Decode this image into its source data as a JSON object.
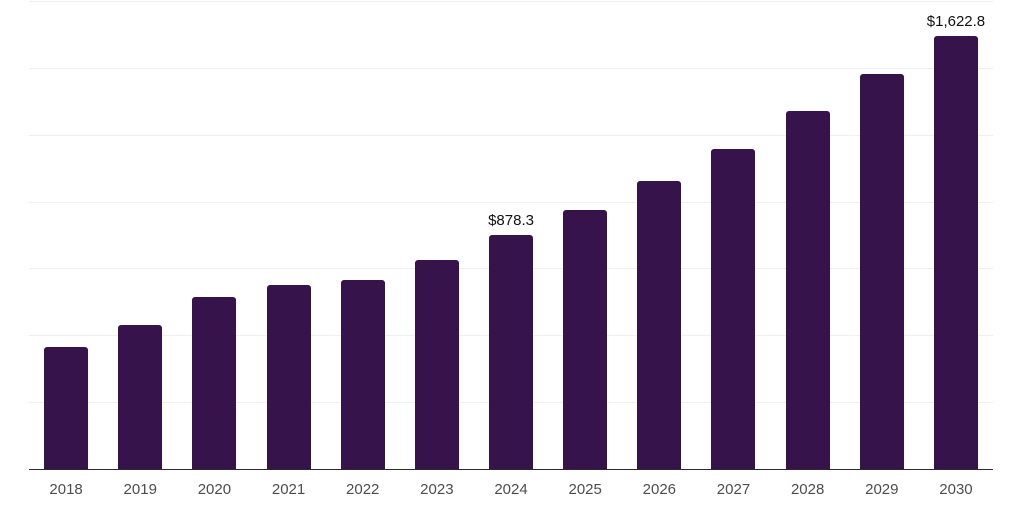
{
  "chart_data": {
    "type": "bar",
    "categories": [
      "2018",
      "2019",
      "2020",
      "2021",
      "2022",
      "2023",
      "2024",
      "2025",
      "2026",
      "2027",
      "2028",
      "2029",
      "2030"
    ],
    "values": [
      460,
      542,
      647,
      692,
      712,
      784,
      878.3,
      972,
      1080,
      1200,
      1344,
      1481,
      1622.8
    ],
    "data_labels": [
      {
        "category": "2024",
        "label": "$878.3"
      },
      {
        "category": "2030",
        "label": "$1,622.8"
      }
    ],
    "ylim": [
      0,
      1750
    ],
    "gridline_interval": 250,
    "grid": true,
    "legend_position": "none",
    "colors": {
      "bar": "#36134a",
      "gridline": "#efefef",
      "axis_line": "#2b2b2b",
      "tick_label": "#4d4d4d",
      "data_label": "#111111",
      "background": "#ffffff"
    }
  }
}
